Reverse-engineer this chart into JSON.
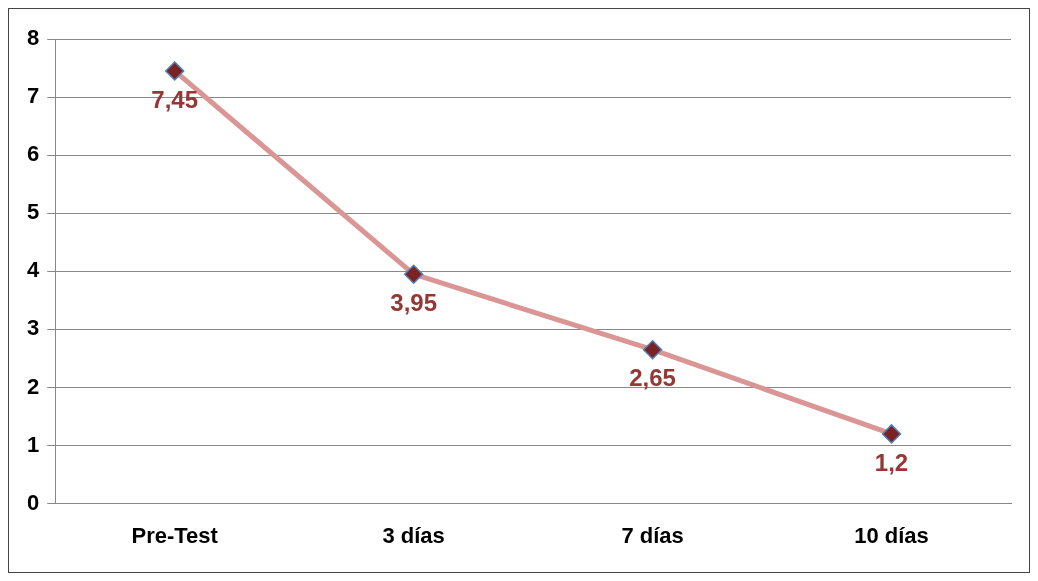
{
  "chart_data": {
    "type": "line",
    "categories": [
      "Pre-Test",
      "3 días",
      "7 días",
      "10 días"
    ],
    "series": [
      {
        "color": "#d99694",
        "values": [
          7.45,
          3.95,
          2.65,
          1.2
        ],
        "value_labels": [
          "7,45",
          "3,95",
          "2,65",
          "1,2"
        ]
      }
    ],
    "ylim": [
      0,
      8
    ],
    "yticks": [
      0,
      1,
      2,
      3,
      4,
      5,
      6,
      7,
      8
    ],
    "grid": "y",
    "legend": false,
    "marker": "diamond",
    "line_style": "solid"
  }
}
